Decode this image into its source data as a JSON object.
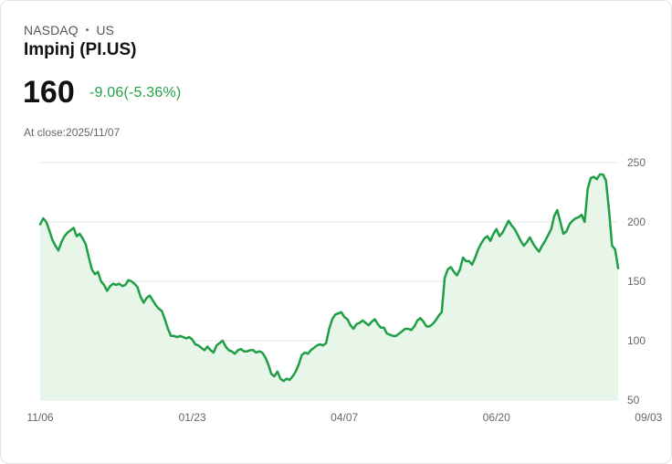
{
  "header": {
    "exchange": "NASDAQ",
    "separator": "•",
    "region": "US",
    "name": "Impinj (PI.US)",
    "price": "160",
    "change": "-9.06(-5.36%)",
    "close_label": "At close:",
    "close_date": "2025/11/07"
  },
  "colors": {
    "line": "#1e9e45",
    "fill": "#e8f6ea",
    "change": "#22a146",
    "grid": "#e6e6e6"
  },
  "chart_data": {
    "type": "area",
    "title": "Impinj (PI.US)",
    "xlabel": "",
    "ylabel": "",
    "ylim": [
      50,
      250
    ],
    "yticks": [
      250,
      200,
      150,
      100,
      50
    ],
    "x_tick_labels": [
      "11/06",
      "01/23",
      "04/07",
      "06/20",
      "09/03"
    ],
    "x_tick_index": [
      0,
      50,
      100,
      150,
      200
    ],
    "grid": true,
    "y_axis_side": "right",
    "series": [
      {
        "name": "Impinj",
        "values": [
          198,
          203,
          200,
          193,
          185,
          180,
          176,
          183,
          188,
          191,
          193,
          195,
          188,
          190,
          186,
          181,
          170,
          160,
          156,
          158,
          150,
          147,
          142,
          146,
          148,
          147,
          148,
          146,
          147,
          151,
          150,
          148,
          145,
          137,
          132,
          136,
          138,
          134,
          130,
          127,
          125,
          118,
          110,
          104,
          104,
          103,
          104,
          103,
          102,
          103,
          101,
          97,
          96,
          94,
          92,
          95,
          92,
          90,
          96,
          98,
          100,
          95,
          92,
          91,
          89,
          92,
          93,
          91,
          91,
          92,
          92,
          90,
          91,
          90,
          86,
          80,
          72,
          70,
          74,
          68,
          66,
          68,
          67,
          70,
          74,
          80,
          88,
          90,
          89,
          92,
          94,
          96,
          97,
          96,
          98,
          110,
          118,
          122,
          123,
          124,
          120,
          118,
          113,
          110,
          114,
          115,
          117,
          115,
          113,
          116,
          118,
          114,
          111,
          111,
          106,
          105,
          104,
          104,
          106,
          108,
          110,
          110,
          109,
          112,
          117,
          119,
          116,
          112,
          112,
          114,
          117,
          121,
          124,
          153,
          160,
          162,
          158,
          155,
          160,
          170,
          167,
          167,
          164,
          170,
          177,
          182,
          186,
          188,
          184,
          190,
          194,
          188,
          191,
          196,
          201,
          197,
          194,
          189,
          184,
          180,
          183,
          187,
          182,
          178,
          175,
          180,
          184,
          189,
          194,
          205,
          210,
          200,
          190,
          192,
          198,
          201,
          203,
          204,
          206,
          200,
          228,
          237,
          238,
          236,
          240,
          240,
          235,
          210,
          180,
          177,
          161
        ]
      }
    ]
  }
}
